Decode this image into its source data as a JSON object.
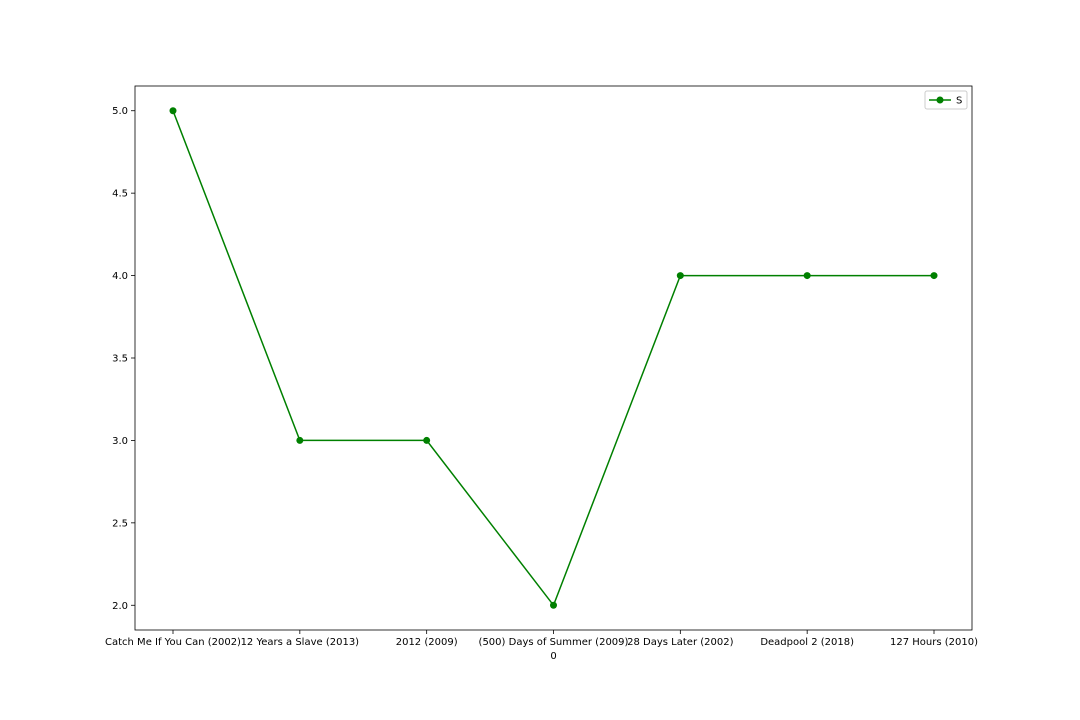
{
  "chart_data": {
    "type": "line",
    "title": "",
    "xlabel": "0",
    "ylabel": "",
    "categories": [
      "Catch Me If You Can (2002)",
      "12 Years a Slave (2013)",
      "2012 (2009)",
      "(500) Days of Summer (2009)",
      "28 Days Later (2002)",
      "Deadpool 2 (2018)",
      "127 Hours (2010)"
    ],
    "series": [
      {
        "name": "S",
        "color": "#008000",
        "marker": "circle",
        "values": [
          5.0,
          3.0,
          3.0,
          2.0,
          4.0,
          4.0,
          4.0
        ]
      }
    ],
    "ylim": [
      1.85,
      5.15
    ],
    "yticks": [
      "2.0",
      "2.5",
      "3.0",
      "3.5",
      "4.0",
      "4.5",
      "5.0"
    ],
    "grid": false,
    "legend_position": "top-right"
  }
}
